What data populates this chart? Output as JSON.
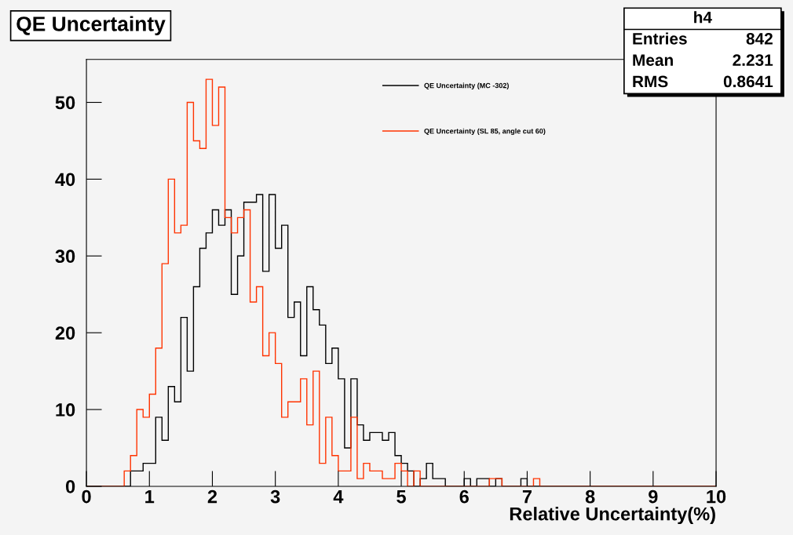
{
  "chart_data": {
    "type": "histogram",
    "title": "QE Uncertainty",
    "xlabel": "Relative Uncertainty(%)",
    "bins": [
      0,
      0.1,
      0.2,
      0.3,
      0.4,
      0.5,
      0.6,
      0.7,
      0.8,
      0.9,
      1,
      1.1,
      1.2,
      1.3,
      1.4,
      1.5,
      1.6,
      1.7,
      1.8,
      1.9,
      2,
      2.1,
      2.2,
      2.3,
      2.4,
      2.5,
      2.6,
      2.7,
      2.8,
      2.9,
      3,
      3.1,
      3.2,
      3.3,
      3.4,
      3.5,
      3.6,
      3.7,
      3.8,
      3.9,
      4,
      4.1,
      4.2,
      4.3,
      4.4,
      4.5,
      4.6,
      4.7,
      4.8,
      4.9,
      5,
      5.1,
      5.2,
      5.3,
      5.4,
      5.5,
      5.6,
      5.7,
      5.8,
      5.9,
      6,
      6.1,
      6.2,
      6.3,
      6.4,
      6.5,
      6.6,
      6.7,
      6.8,
      6.9,
      7,
      7.1,
      7.2,
      7.3,
      7.4,
      7.5,
      7.6,
      7.7,
      7.8,
      7.9,
      8,
      8.1,
      8.2,
      8.3,
      8.4,
      8.5,
      8.6,
      8.7,
      8.8,
      8.9,
      9,
      9.1,
      9.2,
      9.3,
      9.4,
      9.5,
      9.6,
      9.7,
      9.8,
      9.9,
      10
    ],
    "series": [
      {
        "name": "QE Uncertainty (MC -302)",
        "color": "#000000",
        "values": [
          0,
          0,
          0,
          0,
          0,
          0,
          0,
          2,
          2,
          3,
          3,
          9,
          6,
          13,
          11,
          22,
          15,
          26,
          31,
          33,
          36,
          34,
          36,
          25,
          30,
          37,
          37,
          38,
          28,
          38,
          31,
          34,
          22,
          24,
          17,
          26,
          23,
          21,
          16,
          18,
          14,
          5,
          14,
          8,
          6,
          7,
          7,
          6,
          7,
          4,
          3,
          2,
          0,
          1,
          3,
          1,
          1,
          0,
          0,
          0,
          1,
          0,
          1,
          1,
          0,
          1,
          0,
          0,
          0,
          1,
          0,
          0,
          0,
          0,
          0,
          0,
          0,
          0,
          0,
          0,
          0,
          0,
          0,
          0,
          0,
          0,
          0,
          0,
          0,
          0,
          0,
          0,
          0,
          0,
          0,
          0,
          0,
          0,
          0,
          0
        ]
      },
      {
        "name": "QE Uncertainty (SL 85, angle cut 60)",
        "color": "#ff3300",
        "values": [
          0,
          0,
          0,
          0,
          0,
          0,
          2,
          4,
          10,
          9,
          12,
          18,
          29,
          40,
          33,
          34,
          50,
          45,
          44,
          53,
          47,
          52,
          35,
          33,
          35,
          36,
          24,
          26,
          17,
          20,
          16,
          9,
          11,
          11,
          14,
          8,
          15,
          3,
          9,
          4,
          2,
          2,
          9,
          1,
          3,
          2,
          2,
          1,
          1,
          3,
          2,
          0,
          2,
          0,
          0,
          0,
          0,
          0,
          0,
          0,
          0,
          0,
          0,
          0,
          1,
          1,
          0,
          0,
          0,
          0,
          0,
          1,
          0,
          0,
          0,
          0,
          0,
          0,
          0,
          0,
          0,
          0,
          0,
          0,
          0,
          0,
          0,
          0,
          0,
          0,
          0,
          0,
          0,
          0,
          0,
          0,
          0,
          0,
          0,
          0
        ]
      }
    ],
    "xlim": [
      0,
      10
    ],
    "xticks": [
      0,
      1,
      2,
      3,
      4,
      5,
      6,
      7,
      8,
      9,
      10
    ],
    "ylim": [
      0,
      55.6
    ],
    "yticks": [
      0,
      10,
      20,
      30,
      40,
      50
    ],
    "grid": false,
    "legend": "top",
    "annotations": [
      "h4",
      "Entries",
      "842",
      "Mean",
      "2.231",
      "RMS",
      "0.8641"
    ]
  }
}
